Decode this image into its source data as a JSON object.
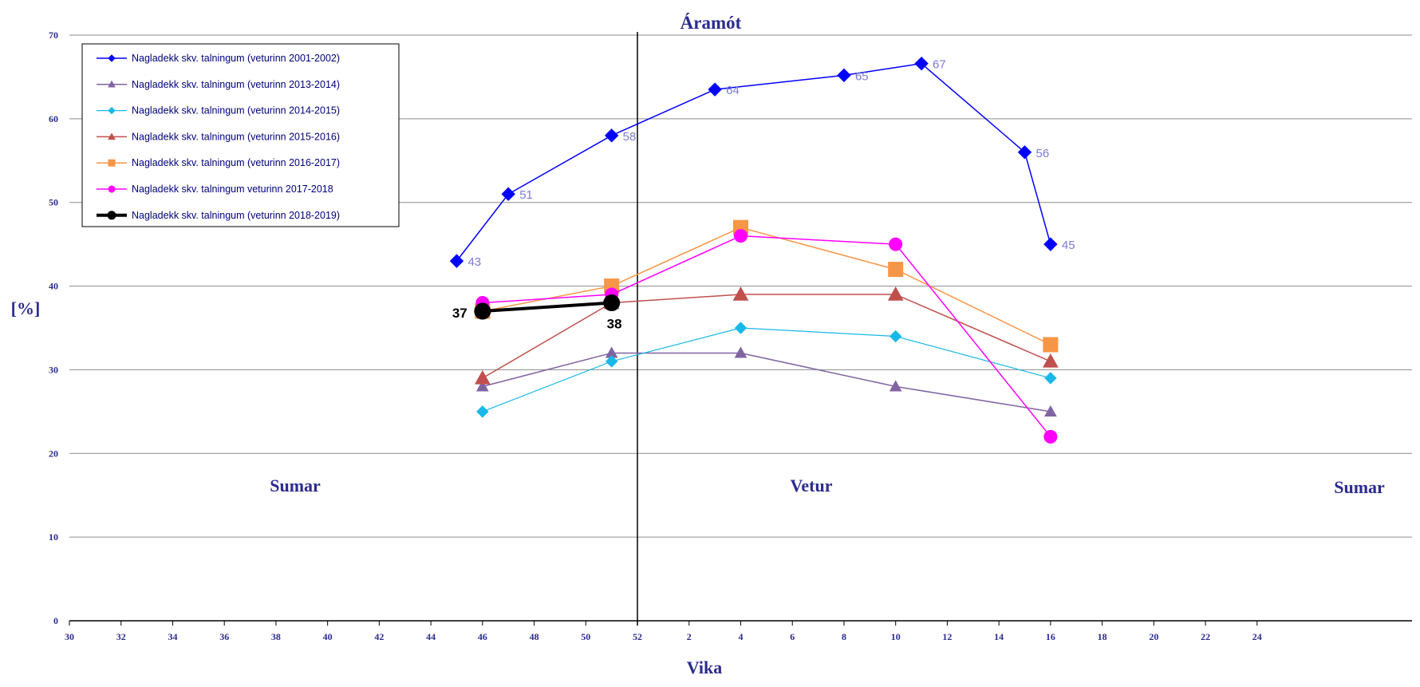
{
  "chart_data": {
    "type": "line",
    "title": "Áramót",
    "xlabel": "Vika",
    "ylabel": "[%]",
    "ylim": [
      0,
      70
    ],
    "yticks": [
      0,
      10,
      20,
      30,
      40,
      50,
      60,
      70
    ],
    "xticks": [
      "30",
      "32",
      "34",
      "36",
      "38",
      "40",
      "42",
      "44",
      "46",
      "48",
      "50",
      "52",
      "2",
      "4",
      "6",
      "8",
      "10",
      "12",
      "14",
      "16",
      "18",
      "20",
      "22",
      "24"
    ],
    "season_labels": [
      "Sumar",
      "Vetur",
      "Sumar"
    ],
    "divider_label": "52",
    "grid": true,
    "legend_position": "top-left",
    "series": [
      {
        "name": "Nagladekk skv. talningum (veturinn 2001-2002)",
        "color": "#0000ff",
        "marker": "diamond",
        "marker_size": 8,
        "line_width": 1.5,
        "label_color": "#7b7bd6",
        "points": [
          {
            "x": "45",
            "y": 43,
            "label": "43"
          },
          {
            "x": "47",
            "y": 51,
            "label": "51"
          },
          {
            "x": "51",
            "y": 58,
            "label": "58"
          },
          {
            "x": "3",
            "y": 63.5,
            "label": "64"
          },
          {
            "x": "8",
            "y": 65.2,
            "label": "65"
          },
          {
            "x": "11",
            "y": 66.6,
            "label": "67"
          },
          {
            "x": "15",
            "y": 56,
            "label": "56"
          },
          {
            "x": "16",
            "y": 45,
            "label": "45"
          }
        ]
      },
      {
        "name": "Nagladekk skv. talningum (veturinn 2013-2014)",
        "color": "#8064a2",
        "marker": "triangle",
        "marker_size": 7,
        "line_width": 1.5,
        "points": [
          {
            "x": "46",
            "y": 28
          },
          {
            "x": "51",
            "y": 32
          },
          {
            "x": "4",
            "y": 32
          },
          {
            "x": "10",
            "y": 28
          },
          {
            "x": "16",
            "y": 25
          }
        ]
      },
      {
        "name": "Nagladekk skv. talningum (veturinn 2014-2015)",
        "color": "#19b8e8",
        "marker": "diamond",
        "marker_size": 7,
        "line_width": 1.2,
        "points": [
          {
            "x": "46",
            "y": 25
          },
          {
            "x": "51",
            "y": 31
          },
          {
            "x": "4",
            "y": 35
          },
          {
            "x": "10",
            "y": 34
          },
          {
            "x": "16",
            "y": 29
          }
        ]
      },
      {
        "name": "Nagladekk skv. talningum (veturinn 2015-2016)",
        "color": "#c0504d",
        "marker": "triangle",
        "marker_size": 9,
        "line_width": 1.5,
        "points": [
          {
            "x": "46",
            "y": 29
          },
          {
            "x": "51",
            "y": 38
          },
          {
            "x": "4",
            "y": 39
          },
          {
            "x": "10",
            "y": 39
          },
          {
            "x": "16",
            "y": 31
          }
        ]
      },
      {
        "name": "Nagladekk skv. talningum (veturinn 2016-2017)",
        "color": "#f79646",
        "marker": "square",
        "marker_size": 9,
        "line_width": 1.5,
        "points": [
          {
            "x": "46",
            "y": 37
          },
          {
            "x": "51",
            "y": 40
          },
          {
            "x": "4",
            "y": 47
          },
          {
            "x": "10",
            "y": 42
          },
          {
            "x": "16",
            "y": 33
          }
        ]
      },
      {
        "name": "Nagladekk skv. talningum veturinn 2017-2018",
        "color": "#ff00ff",
        "marker": "circle",
        "marker_size": 8,
        "line_width": 1.5,
        "points": [
          {
            "x": "46",
            "y": 38
          },
          {
            "x": "51",
            "y": 39
          },
          {
            "x": "4",
            "y": 46
          },
          {
            "x": "10",
            "y": 45
          },
          {
            "x": "16",
            "y": 22
          }
        ]
      },
      {
        "name": "Nagladekk skv. talningum (veturinn 2018-2019)",
        "color": "#000000",
        "marker": "circle",
        "marker_size": 10,
        "line_width": 4,
        "label_color": "#000000",
        "points": [
          {
            "x": "46",
            "y": 37,
            "label": "37"
          },
          {
            "x": "51",
            "y": 38,
            "label": "38"
          }
        ]
      }
    ]
  }
}
